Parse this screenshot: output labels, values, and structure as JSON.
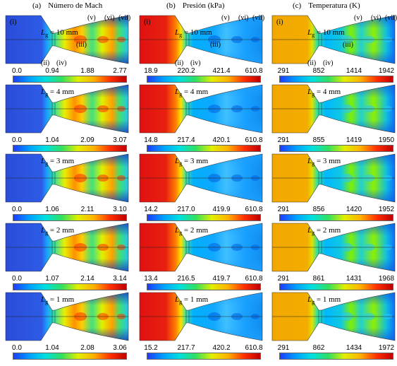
{
  "headers": [
    {
      "letter": "(a)",
      "title": "Número de Mach"
    },
    {
      "letter": "(b)",
      "title": "Presión (kPa)"
    },
    {
      "letter": "(c)",
      "title": "Temperatura (K)"
    }
  ],
  "annotations": {
    "i": "(i)",
    "ii": "(ii)",
    "iii": "(iii)",
    "iv": "(iv)",
    "v": "(v)",
    "vi": "(vi)",
    "vii": "(vii)"
  },
  "lg_symbol": "L",
  "lg_subscript": "g",
  "rows": [
    {
      "lg": "= 10 mm",
      "mach": [
        "0.0",
        "0.94",
        "1.88",
        "2.77"
      ],
      "pressure": [
        "18.9",
        "220.2",
        "421.4",
        "610.8"
      ],
      "temperature": [
        "291",
        "852",
        "1414",
        "1942"
      ]
    },
    {
      "lg": "= 4 mm",
      "mach": [
        "0.0",
        "1.04",
        "2.09",
        "3.07"
      ],
      "pressure": [
        "14.8",
        "217.4",
        "420.1",
        "610.8"
      ],
      "temperature": [
        "291",
        "855",
        "1419",
        "1950"
      ]
    },
    {
      "lg": "= 3 mm",
      "mach": [
        "0.0",
        "1.06",
        "2.11",
        "3.10"
      ],
      "pressure": [
        "14.2",
        "217.0",
        "419.9",
        "610.8"
      ],
      "temperature": [
        "291",
        "856",
        "1420",
        "1952"
      ]
    },
    {
      "lg": "= 2 mm",
      "mach": [
        "0.0",
        "1.07",
        "2.14",
        "3.14"
      ],
      "pressure": [
        "13.4",
        "216.5",
        "419.7",
        "610.8"
      ],
      "temperature": [
        "291",
        "861",
        "1431",
        "1968"
      ]
    },
    {
      "lg": "= 1 mm",
      "mach": [
        "0.0",
        "1.04",
        "2.08",
        "3.06"
      ],
      "pressure": [
        "15.2",
        "217.7",
        "420.2",
        "610.8"
      ],
      "temperature": [
        "291",
        "862",
        "1434",
        "1972"
      ]
    }
  ]
}
